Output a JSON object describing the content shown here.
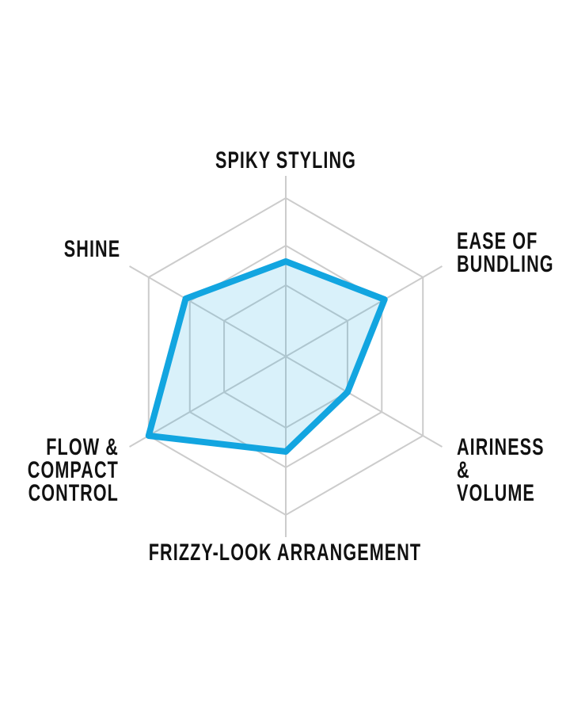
{
  "page": {
    "background_color": "#ffffff"
  },
  "chart_data": {
    "type": "radar",
    "title": "",
    "axes": [
      {
        "id": "spiky-styling",
        "label": "SPIKY STYLING",
        "value": 60
      },
      {
        "id": "ease-of-bundling",
        "label": "EASE OF\nBUNDLING",
        "value": 72
      },
      {
        "id": "airiness-volume",
        "label": "AIRINESS &\nVOLUME",
        "value": 45
      },
      {
        "id": "frizzy-look-arrangement",
        "label": "FRIZZY-LOOK ARRANGEMENT",
        "value": 60
      },
      {
        "id": "flow-compact-control",
        "label": "FLOW &\nCOMPACT\nCONTROL",
        "value": 100
      },
      {
        "id": "shine",
        "label": "SHINE",
        "value": 73
      }
    ],
    "scale": {
      "min": 0,
      "max": 100,
      "grid_rings": [
        45,
        70,
        100
      ],
      "axis_line_extent": 114
    },
    "layout_hints": {
      "start_axis": "top",
      "direction": "clockwise",
      "grid": "hexagonal-web",
      "legend": "none"
    },
    "style": {
      "grid_color": "#cccccc",
      "grid_stroke_width": 2,
      "series_stroke": "#12a5e0",
      "series_stroke_width": 8,
      "series_fill_opacity": 0.16,
      "label_color": "#111111"
    }
  }
}
